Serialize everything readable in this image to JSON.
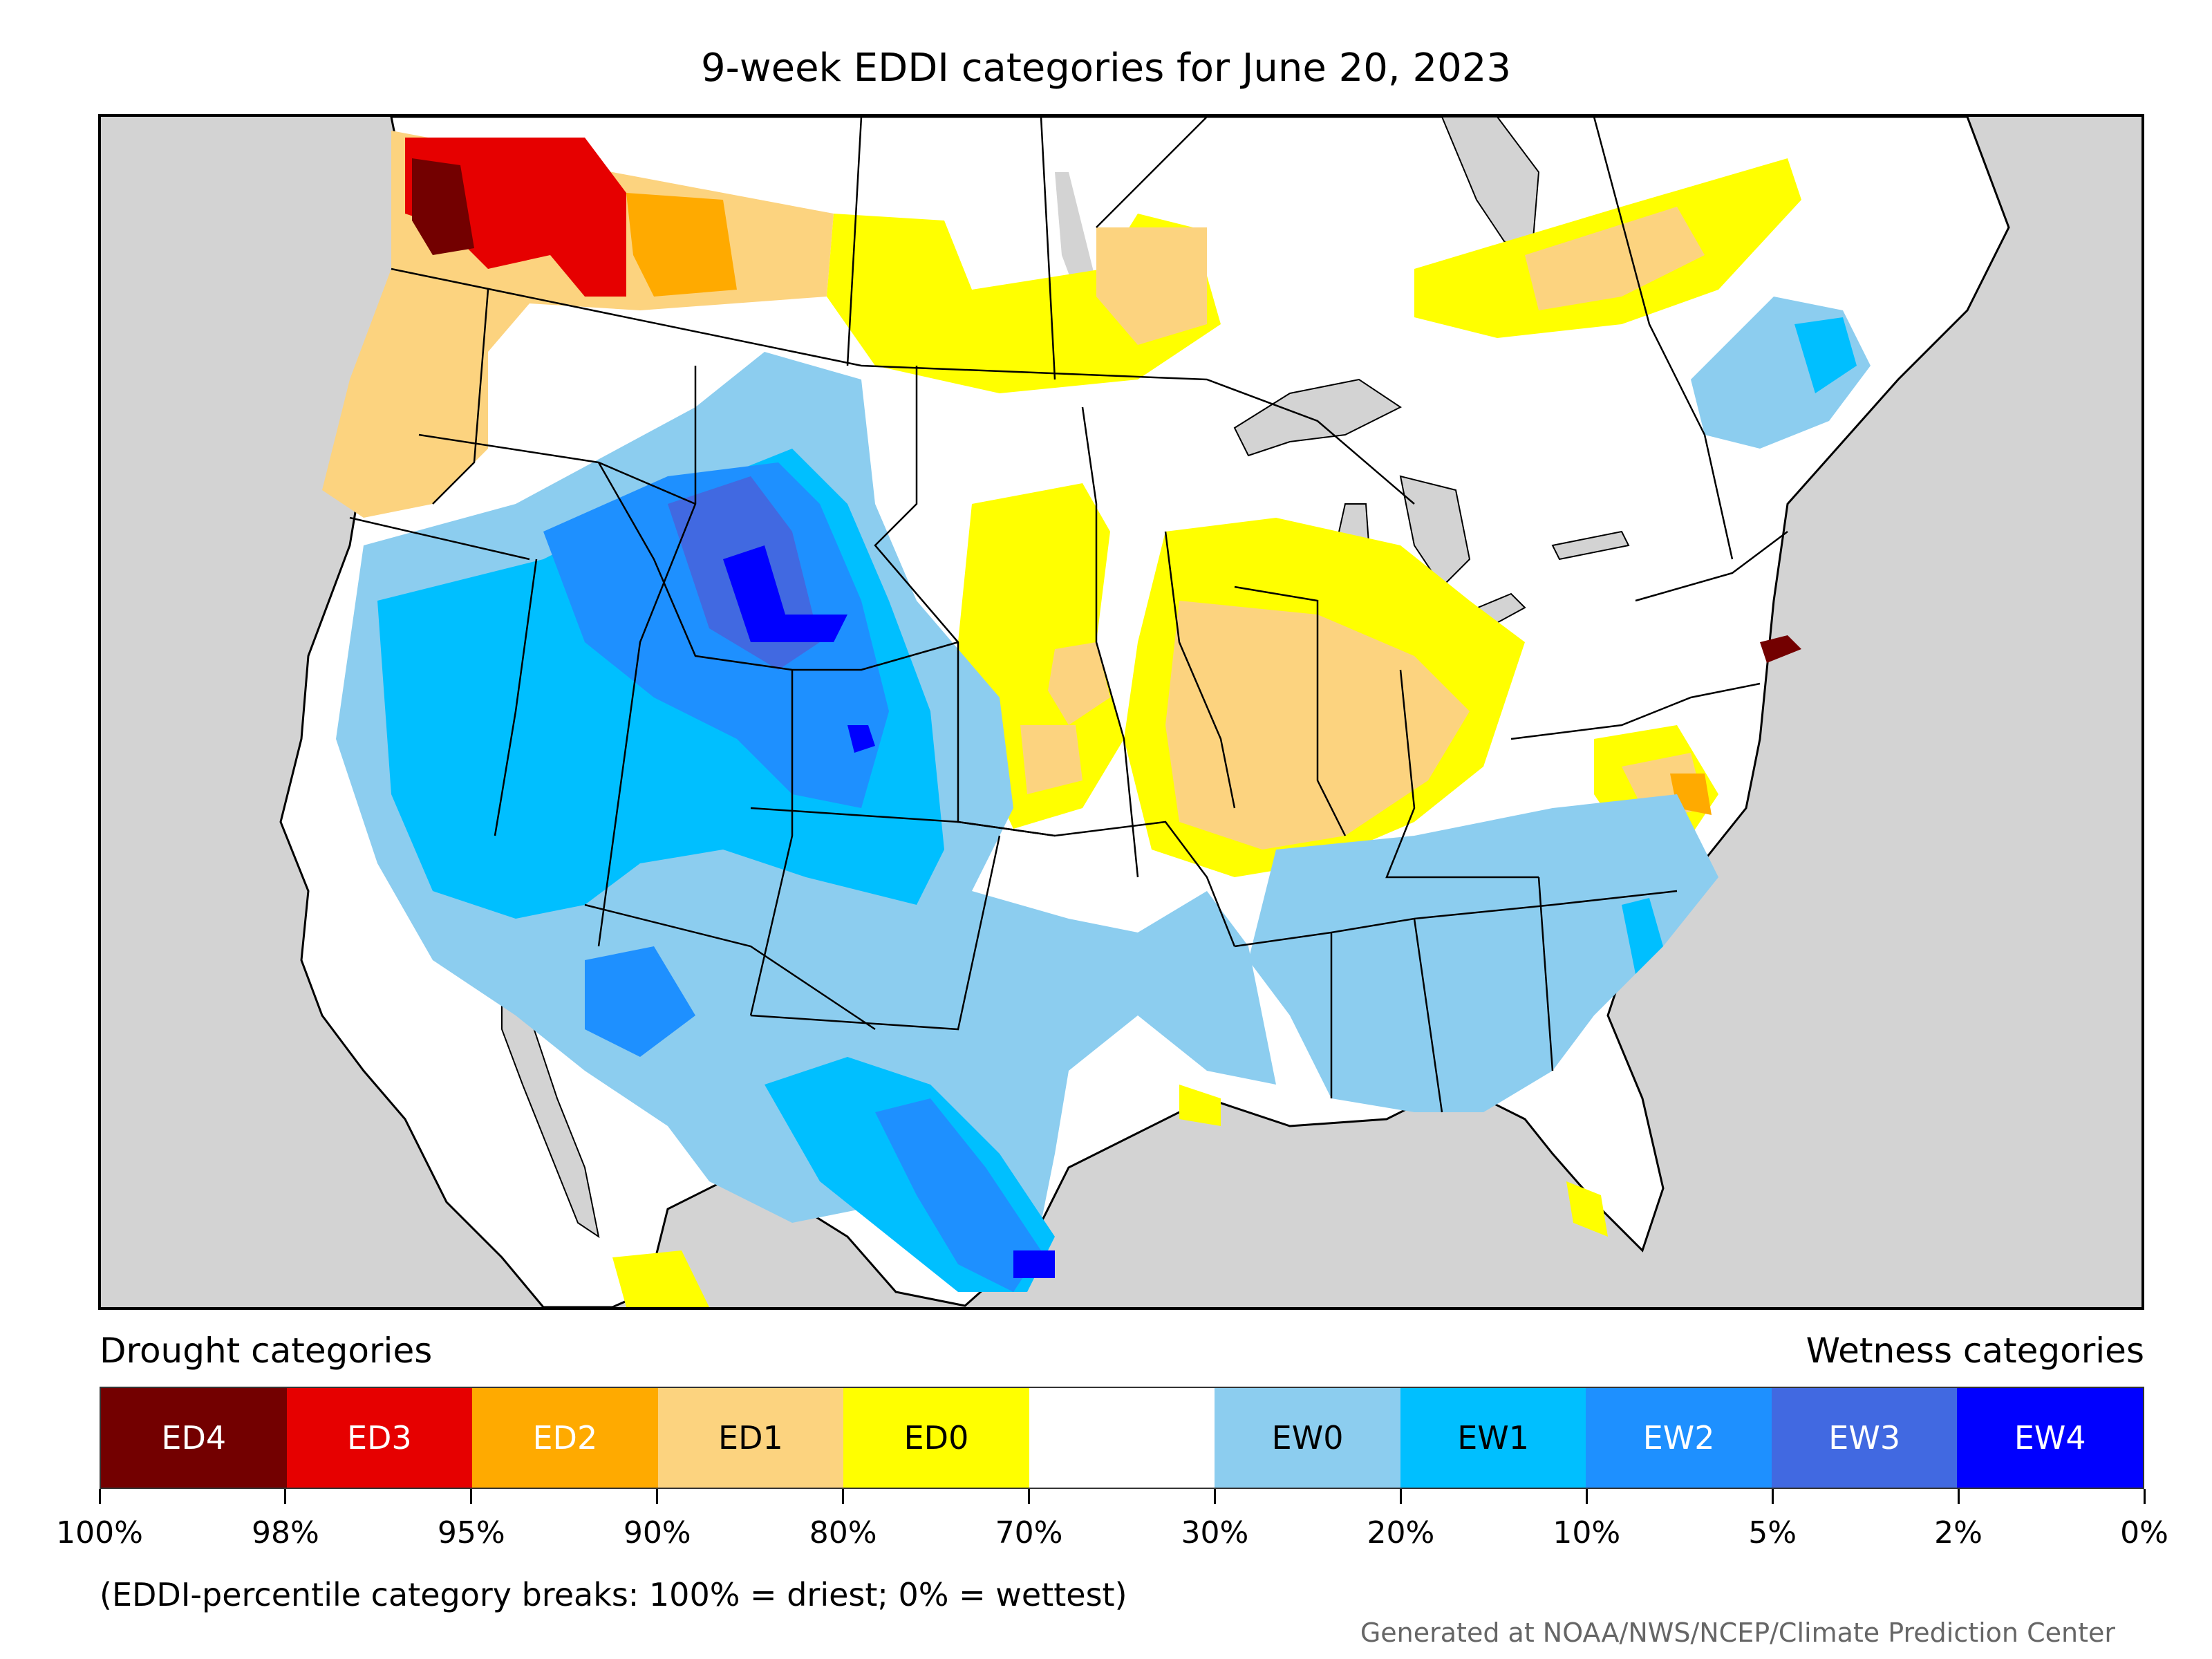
{
  "title": "9-week EDDI categories for June 20, 2023",
  "legend": {
    "drought_header": "Drought categories",
    "wetness_header": "Wetness categories",
    "categories": [
      {
        "label": "ED4",
        "color": "#730000",
        "text_color": "#ffffff"
      },
      {
        "label": "ED3",
        "color": "#e60000",
        "text_color": "#ffffff"
      },
      {
        "label": "ED2",
        "color": "#ffaa00",
        "text_color": "#ffffff"
      },
      {
        "label": "ED1",
        "color": "#fcd37f",
        "text_color": "#000000"
      },
      {
        "label": "ED0",
        "color": "#ffff00",
        "text_color": "#000000"
      },
      {
        "label": "",
        "color": "#ffffff",
        "text_color": "#000000"
      },
      {
        "label": "EW0",
        "color": "#8ccdef",
        "text_color": "#000000"
      },
      {
        "label": "EW1",
        "color": "#00bfff",
        "text_color": "#000000"
      },
      {
        "label": "EW2",
        "color": "#1e90ff",
        "text_color": "#ffffff"
      },
      {
        "label": "EW3",
        "color": "#4169e1",
        "text_color": "#ffffff"
      },
      {
        "label": "EW4",
        "color": "#0000ff",
        "text_color": "#ffffff"
      }
    ],
    "tick_labels": [
      "100%",
      "98%",
      "95%",
      "90%",
      "80%",
      "70%",
      "30%",
      "20%",
      "10%",
      "5%",
      "2%",
      "0%"
    ]
  },
  "footnote": "(EDDI-percentile category breaks: 100% = driest; 0% = wettest)",
  "credit": "Generated at NOAA/NWS/NCEP/Climate Prediction Center",
  "map": {
    "ocean_color": "#d3d3d3",
    "land_color": "#ffffff"
  }
}
